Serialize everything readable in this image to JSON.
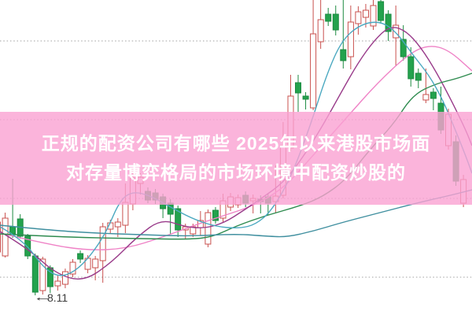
{
  "banner": {
    "line1": "正规的配资公司有哪些 2025年以来港股市场面",
    "line2": "对存量博弈格局的市场环境中配资炒股的",
    "bg_rgba": "rgba(250,161,210,0.80)",
    "text_color": "#ffffff"
  },
  "colors": {
    "background": "#ffffff",
    "up_candle_stroke": "#c9504e",
    "up_candle_fill": "#ffffff",
    "down_candle_fill": "#23a24d",
    "down_candle_stroke": "#1d8a41",
    "gridline": "#a0a0a0",
    "annotation_text": "#3a3a3a"
  },
  "annotation": {
    "arrow": "←",
    "label": "8.11"
  },
  "chart_data": {
    "type": "candlestick",
    "title": "",
    "xlabel": "",
    "ylabel": "",
    "grid": true,
    "legend": "none",
    "ylim": [
      7.61,
      15.61
    ],
    "gridline_prices": [
      14.57,
      12.57,
      10.57,
      8.57
    ],
    "x_start": -3,
    "x_step": 9.55,
    "candle_width": 7,
    "low_annotation": {
      "price": 8.11,
      "candle_index": 5,
      "label": "8.11"
    },
    "candles_format": [
      "open",
      "high",
      "low",
      "close"
    ],
    "candles": [
      [
        9.21,
        10.09,
        9.13,
        9.97
      ],
      [
        9.11,
        10.21,
        9.07,
        10.07
      ],
      [
        9.85,
        11.07,
        9.57,
        9.67
      ],
      [
        10.05,
        10.17,
        9.55,
        9.61
      ],
      [
        9.61,
        9.67,
        9.03,
        9.11
      ],
      [
        9.11,
        9.17,
        8.11,
        8.19
      ],
      [
        8.23,
        9.09,
        8.13,
        9.03
      ],
      [
        8.81,
        8.87,
        8.17,
        8.33
      ],
      [
        8.35,
        8.61,
        8.23,
        8.47
      ],
      [
        8.39,
        8.79,
        8.29,
        8.71
      ],
      [
        8.65,
        9.03,
        8.57,
        8.95
      ],
      [
        9.17,
        9.25,
        8.93,
        9.03
      ],
      [
        8.77,
        9.13,
        8.67,
        9.05
      ],
      [
        8.81,
        9.11,
        8.49,
        9.03
      ],
      [
        8.99,
        9.95,
        8.43,
        9.85
      ],
      [
        9.79,
        10.03,
        9.69,
        9.95
      ],
      [
        9.85,
        10.07,
        9.59,
        9.97
      ],
      [
        9.89,
        10.95,
        9.69,
        10.47
      ],
      [
        10.43,
        11.35,
        10.27,
        11.09
      ],
      [
        10.95,
        11.21,
        10.67,
        11.11
      ],
      [
        10.75,
        10.85,
        10.45,
        10.53
      ],
      [
        10.71,
        10.81,
        10.43,
        10.53
      ],
      [
        10.61,
        10.69,
        10.07,
        10.31
      ],
      [
        10.45,
        10.55,
        9.65,
        10.17
      ],
      [
        10.31,
        10.39,
        9.59,
        9.77
      ],
      [
        9.77,
        9.93,
        9.55,
        9.85
      ],
      [
        9.67,
        9.93,
        9.59,
        9.85
      ],
      [
        9.83,
        10.25,
        9.63,
        10.01
      ],
      [
        9.41,
        10.29,
        9.33,
        10.21
      ],
      [
        10.27,
        10.35,
        9.93,
        10.01
      ],
      [
        10.07,
        10.69,
        9.97,
        10.51
      ],
      [
        10.35,
        10.71,
        10.25,
        10.61
      ],
      [
        10.41,
        10.67,
        10.33,
        10.59
      ],
      [
        10.65,
        10.75,
        10.35,
        10.45
      ],
      [
        10.51,
        10.67,
        10.19,
        10.57
      ],
      [
        10.55,
        10.65,
        10.19,
        10.49
      ],
      [
        10.61,
        10.71,
        10.15,
        10.45
      ],
      [
        10.49,
        11.41,
        10.21,
        10.63
      ],
      [
        10.65,
        12.51,
        10.57,
        11.91
      ],
      [
        11.85,
        13.71,
        11.77,
        13.17
      ],
      [
        13.51,
        13.71,
        12.77,
        13.25
      ],
      [
        13.17,
        13.27,
        12.83,
        13.09
      ],
      [
        12.87,
        15.61,
        12.81,
        14.75
      ],
      [
        14.55,
        15.61,
        14.37,
        15.11
      ],
      [
        15.25,
        15.41,
        14.95,
        15.07
      ],
      [
        15.25,
        15.47,
        14.71,
        14.85
      ],
      [
        14.35,
        15.61,
        13.87,
        14.07
      ],
      [
        14.17,
        15.47,
        13.85,
        15.05
      ],
      [
        15.01,
        15.45,
        14.73,
        15.31
      ],
      [
        15.17,
        15.51,
        14.91,
        15.35
      ],
      [
        14.95,
        15.61,
        14.85,
        15.47
      ],
      [
        15.57,
        15.61,
        15.01,
        15.09
      ],
      [
        15.25,
        15.35,
        14.57,
        14.81
      ],
      [
        14.65,
        15.47,
        13.95,
        14.97
      ],
      [
        14.61,
        14.97,
        14.07,
        14.17
      ],
      [
        14.17,
        14.41,
        13.41,
        13.61
      ],
      [
        13.75,
        13.87,
        13.37,
        13.57
      ],
      [
        13.07,
        13.87,
        12.99,
        13.21
      ],
      [
        13.27,
        13.37,
        12.81,
        13.11
      ],
      [
        12.99,
        13.41,
        12.21,
        12.31
      ],
      [
        11.91,
        12.85,
        11.81,
        12.71
      ],
      [
        12.01,
        12.17,
        10.89,
        11.01
      ],
      [
        10.45,
        11.17,
        10.35,
        11.05
      ]
    ],
    "ma_series": [
      {
        "name": "ma-pink-long",
        "color": "#ef82c6",
        "width": 1.4,
        "points": [
          [
            0,
            9.69
          ],
          [
            60,
            9.41
          ],
          [
            110,
            9.25
          ],
          [
            160,
            9.29
          ],
          [
            210,
            9.61
          ],
          [
            250,
            9.91
          ],
          [
            290,
            10.17
          ],
          [
            320,
            10.37
          ],
          [
            360,
            10.81
          ],
          [
            400,
            11.71
          ],
          [
            440,
            12.61
          ],
          [
            480,
            13.51
          ],
          [
            520,
            14.25
          ],
          [
            545,
            14.47
          ],
          [
            570,
            14.35
          ],
          [
            600,
            13.81
          ]
        ]
      },
      {
        "name": "ma-purple-mid",
        "color": "#993b8a",
        "width": 1.4,
        "points": [
          [
            0,
            9.73
          ],
          [
            35,
            9.31
          ],
          [
            70,
            8.67
          ],
          [
            105,
            8.45
          ],
          [
            140,
            8.91
          ],
          [
            175,
            9.61
          ],
          [
            205,
            10.05
          ],
          [
            235,
            9.85
          ],
          [
            260,
            9.81
          ],
          [
            285,
            9.95
          ],
          [
            310,
            10.27
          ],
          [
            335,
            10.61
          ],
          [
            360,
            10.97
          ],
          [
            385,
            11.61
          ],
          [
            410,
            12.41
          ],
          [
            435,
            13.31
          ],
          [
            455,
            14.01
          ],
          [
            475,
            14.57
          ],
          [
            495,
            14.95
          ],
          [
            515,
            14.85
          ],
          [
            535,
            14.41
          ],
          [
            555,
            13.77
          ],
          [
            575,
            13.01
          ],
          [
            592,
            12.31
          ],
          [
            600,
            11.91
          ]
        ]
      },
      {
        "name": "ma-green",
        "color": "#2e8b4f",
        "width": 1.4,
        "points": [
          [
            0,
            9.67
          ],
          [
            60,
            9.61
          ],
          [
            120,
            9.57
          ],
          [
            180,
            9.55
          ],
          [
            240,
            9.53
          ],
          [
            270,
            9.59
          ],
          [
            300,
            9.87
          ],
          [
            340,
            10.15
          ],
          [
            380,
            10.37
          ],
          [
            410,
            10.61
          ],
          [
            440,
            11.05
          ],
          [
            470,
            11.81
          ],
          [
            500,
            12.45
          ],
          [
            525,
            13.21
          ],
          [
            555,
            13.49
          ],
          [
            580,
            13.61
          ],
          [
            600,
            13.75
          ]
        ]
      },
      {
        "name": "ma-teal-slow",
        "color": "#3f8f9f",
        "width": 1.4,
        "points": [
          [
            0,
            9.89
          ],
          [
            60,
            9.77
          ],
          [
            120,
            9.69
          ],
          [
            180,
            9.65
          ],
          [
            240,
            9.61
          ],
          [
            300,
            9.67
          ],
          [
            340,
            9.61
          ],
          [
            365,
            9.59
          ],
          [
            400,
            9.75
          ],
          [
            433,
            9.95
          ],
          [
            483,
            10.21
          ],
          [
            533,
            10.47
          ],
          [
            577,
            10.67
          ],
          [
            600,
            10.79
          ]
        ]
      },
      {
        "name": "ma-cyan-fast",
        "color": "#4aa8c0",
        "width": 1.4,
        "points": [
          [
            0,
            9.85
          ],
          [
            30,
            9.51
          ],
          [
            55,
            8.81
          ],
          [
            75,
            8.57
          ],
          [
            95,
            8.71
          ],
          [
            115,
            9.11
          ],
          [
            135,
            9.71
          ],
          [
            152,
            10.51
          ],
          [
            168,
            10.75
          ],
          [
            190,
            10.65
          ],
          [
            215,
            10.37
          ],
          [
            245,
            10.05
          ],
          [
            275,
            9.85
          ],
          [
            305,
            9.81
          ],
          [
            325,
            9.91
          ],
          [
            345,
            10.25
          ],
          [
            370,
            11.11
          ],
          [
            395,
            12.45
          ],
          [
            415,
            13.71
          ],
          [
            435,
            14.61
          ],
          [
            460,
            15.01
          ],
          [
            485,
            15.07
          ],
          [
            505,
            14.77
          ],
          [
            525,
            14.21
          ],
          [
            545,
            13.71
          ],
          [
            562,
            13.11
          ],
          [
            578,
            12.35
          ],
          [
            592,
            11.65
          ],
          [
            600,
            11.21
          ]
        ]
      }
    ]
  }
}
